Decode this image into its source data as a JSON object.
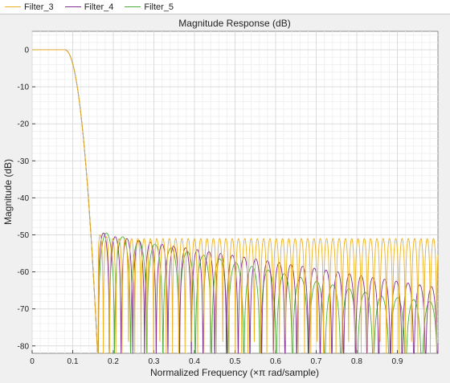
{
  "legend": {
    "items": [
      {
        "label": "Filter_3",
        "color": "#edb120"
      },
      {
        "label": "Filter_4",
        "color": "#7e2f8e"
      },
      {
        "label": "Filter_5",
        "color": "#4dab3c"
      }
    ]
  },
  "chart_data": {
    "type": "line",
    "title": "Magnitude Response (dB)",
    "xlabel": "Normalized Frequency (×π rad/sample)",
    "ylabel": "Magnitude (dB)",
    "xlim": [
      0,
      1
    ],
    "ylim": [
      -82,
      5
    ],
    "xticks": [
      "0",
      "0.1",
      "0.2",
      "0.3",
      "0.4",
      "0.5",
      "0.6",
      "0.7",
      "0.8",
      "0.9"
    ],
    "yticks": [
      "0",
      "-10",
      "-20",
      "-30",
      "-40",
      "-50",
      "-60",
      "-70",
      "-80"
    ],
    "grid": true,
    "legend_position": "top",
    "passband_edge": 0.08,
    "stopband_edge": 0.163,
    "series": [
      {
        "name": "Filter_3",
        "color": "#edb120",
        "ripple_peaks_db": [
          -50,
          -50.5,
          -51,
          -51,
          -51,
          -51,
          -51,
          -51,
          -51,
          -51,
          -51,
          -51,
          -51,
          -51,
          -51,
          -51,
          -51,
          -51,
          -51,
          -51,
          -51,
          -51,
          -51,
          -51,
          -51,
          -51,
          -51,
          -51,
          -51,
          -51,
          -51,
          -51,
          -51,
          -51,
          -51,
          -51,
          -51,
          -51,
          -51,
          -51,
          -51,
          -51,
          -51,
          -51,
          -51,
          -51,
          -51,
          -51,
          -51,
          -51,
          -51,
          -51,
          -51,
          -51
        ]
      },
      {
        "name": "Filter_4",
        "color": "#7e2f8e",
        "ripple_peaks_db": [
          -49.5,
          -50.5,
          -51,
          -51.5,
          -52,
          -52.5,
          -53,
          -53.5,
          -54,
          -54.5,
          -55,
          -55.5,
          -56,
          -56.5,
          -57,
          -57.5,
          -58,
          -58.5,
          -59,
          -59.5,
          -60,
          -60.5,
          -61,
          -61.5,
          -62,
          -62.5,
          -63,
          -63.5,
          -64
        ]
      },
      {
        "name": "Filter_5",
        "color": "#4dab3c",
        "ripple_peaks_db": [
          -49.5,
          -50.5,
          -51.5,
          -52.5,
          -53.5,
          -54.5,
          -55.5,
          -56.5,
          -57.5,
          -58.5,
          -59.5,
          -60.5,
          -61.5,
          -62.5,
          -63.5,
          -64.5,
          -65.5,
          -66.5,
          -67,
          -67.5,
          -68
        ]
      }
    ]
  }
}
